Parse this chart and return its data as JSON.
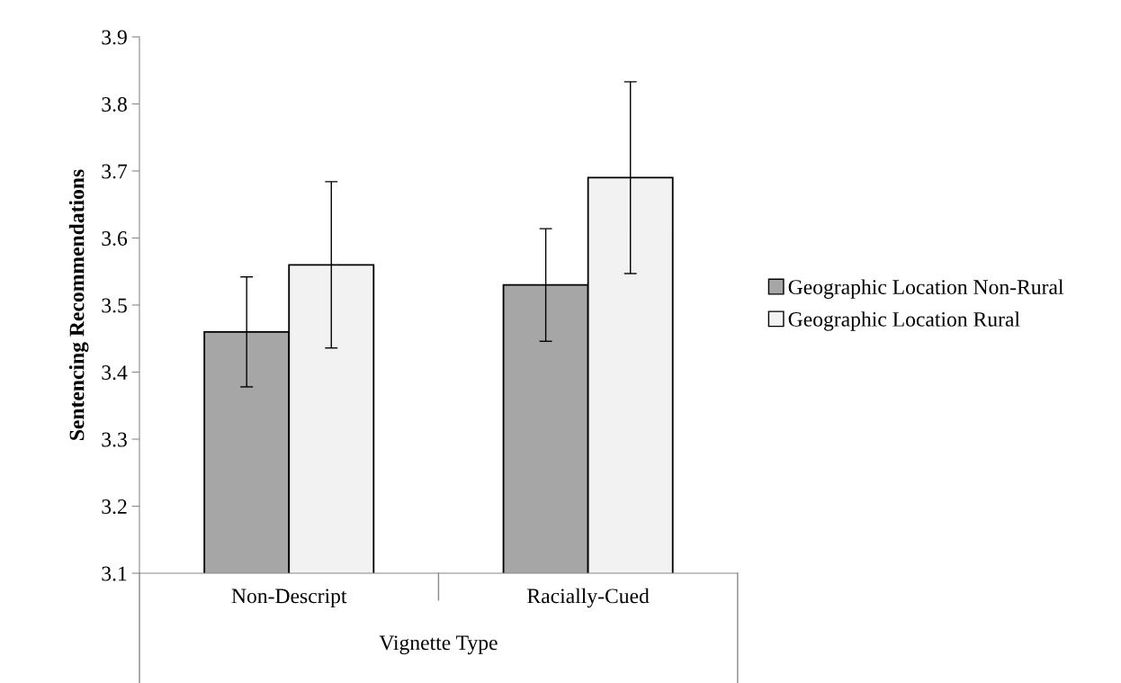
{
  "chart_data": {
    "type": "bar",
    "xlabel": "Vignette Type",
    "ylabel": "Sentencing Recommendations",
    "categories": [
      "Non-Descript",
      "Racially-Cued"
    ],
    "series": [
      {
        "name": "Geographic Location Non-Rural",
        "color": "#a6a6a6",
        "values": [
          3.46,
          3.53
        ],
        "errors": [
          0.082,
          0.084
        ]
      },
      {
        "name": "Geographic Location Rural",
        "color": "#f2f2f2",
        "values": [
          3.56,
          3.69
        ],
        "errors": [
          0.124,
          0.143
        ]
      }
    ],
    "ylim": [
      3.1,
      3.9
    ],
    "yticks": [
      3.1,
      3.2,
      3.3,
      3.4,
      3.5,
      3.6,
      3.7,
      3.8,
      3.9
    ],
    "grid": false,
    "legend": "right"
  }
}
